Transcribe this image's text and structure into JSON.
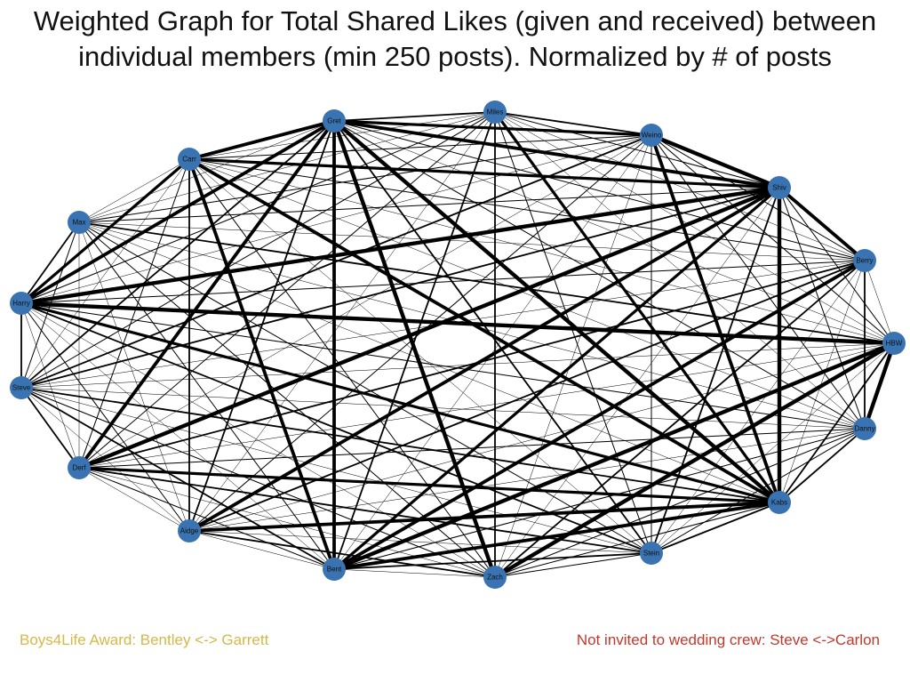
{
  "title": "Weighted Graph for Total Shared Likes (given and received) between\nindividual members (min 250 posts). Normalized by # of posts",
  "notes": {
    "left": {
      "text": "Boys4Life Award: Bentley <-> Garrett",
      "color": "#d4b84a"
    },
    "right": {
      "text": "Not invited to wedding crew: Steve <->Carlon",
      "color": "#c0392b"
    }
  },
  "colors": {
    "node": "#3a73b2",
    "edge": "#000000"
  },
  "graph": {
    "nodes": [
      "Gret",
      "Miles",
      "Weino",
      "Shiv",
      "Berry",
      "HBW",
      "Danny",
      "Kabs",
      "Stein",
      "Zach",
      "Bent",
      "Aidge",
      "Derf",
      "Steve",
      "Harry",
      "Max",
      "Carr"
    ],
    "strong_edges": [
      [
        "Gret",
        "Bent"
      ],
      [
        "Gret",
        "Shiv"
      ],
      [
        "Gret",
        "Kabs"
      ],
      [
        "Gret",
        "Weino"
      ],
      [
        "Gret",
        "Zach"
      ],
      [
        "Gret",
        "Harry"
      ],
      [
        "Shiv",
        "Kabs"
      ],
      [
        "Shiv",
        "Harry"
      ],
      [
        "Shiv",
        "Berry"
      ],
      [
        "Shiv",
        "Carr"
      ],
      [
        "Shiv",
        "Derf"
      ],
      [
        "Shiv",
        "Bent"
      ],
      [
        "Harry",
        "Kabs"
      ],
      [
        "Bent",
        "Kabs"
      ],
      [
        "Carr",
        "Kabs"
      ],
      [
        "Carr",
        "Bent"
      ],
      [
        "Carr",
        "Harry"
      ],
      [
        "Weino",
        "Kabs"
      ],
      [
        "HBW",
        "Danny"
      ],
      [
        "HBW",
        "Bent"
      ],
      [
        "Kabs",
        "Derf"
      ],
      [
        "Kabs",
        "Aidge"
      ],
      [
        "Miles",
        "Kabs"
      ],
      [
        "Harry",
        "HBW"
      ],
      [
        "Gret",
        "Carr"
      ],
      [
        "Weino",
        "Shiv"
      ],
      [
        "Berry",
        "Bent"
      ],
      [
        "Zach",
        "HBW"
      ],
      [
        "Derf",
        "Gret"
      ],
      [
        "Aidge",
        "Shiv"
      ]
    ]
  }
}
